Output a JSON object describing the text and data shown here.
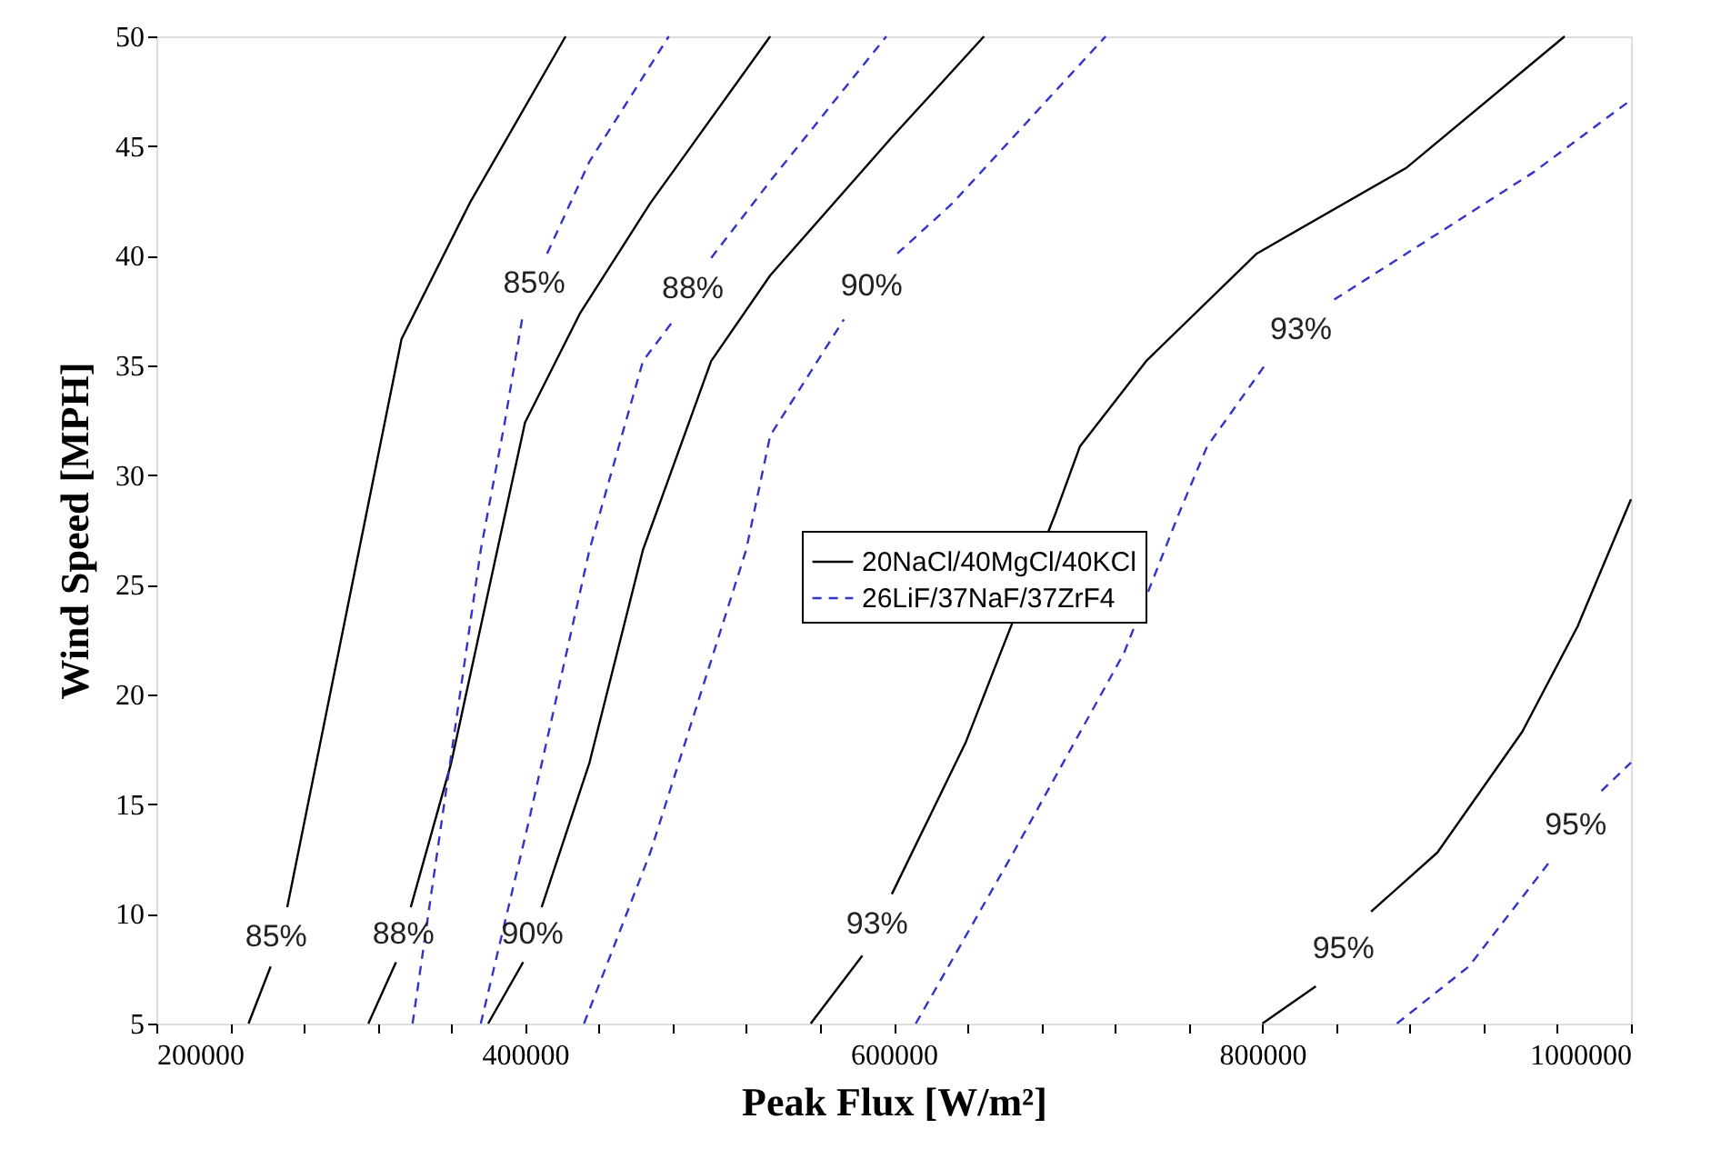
{
  "chart_data": {
    "type": "line",
    "xlabel": "Peak Flux [W/m²]",
    "ylabel": "Wind Speed  [MPH]",
    "xlim": [
      200000,
      1000000
    ],
    "ylim": [
      5,
      50
    ],
    "xticks": [
      200000,
      {
        "value": 240000,
        "label": null
      },
      {
        "value": 280000,
        "label": null
      },
      {
        "value": 320000,
        "label": null
      },
      {
        "value": 360000,
        "label": null
      },
      400000,
      {
        "value": 440000,
        "label": null
      },
      {
        "value": 480000,
        "label": null
      },
      {
        "value": 520000,
        "label": null
      },
      {
        "value": 560000,
        "label": null
      },
      600000,
      {
        "value": 640000,
        "label": null
      },
      {
        "value": 680000,
        "label": null
      },
      {
        "value": 720000,
        "label": null
      },
      {
        "value": 760000,
        "label": null
      },
      800000,
      {
        "value": 840000,
        "label": null
      },
      {
        "value": 880000,
        "label": null
      },
      {
        "value": 920000,
        "label": null
      },
      {
        "value": 960000,
        "label": null
      },
      1000000
    ],
    "yticks": [
      5,
      10,
      15,
      20,
      25,
      30,
      35,
      40,
      45,
      50
    ],
    "legend": "right",
    "series": [
      {
        "name": "20NaCl/40MgCl/40KCl",
        "color": "#000000",
        "line_style": "solid",
        "x": [
          250000,
          262000,
          265000,
          271000,
          310000,
          333000,
          370000,
          422000
        ],
        "values": [
          5,
          7.6,
          null,
          10.3,
          26.6,
          36.2,
          42.4,
          50
        ]
      },
      {
        "color": "#000000",
        "line_style": "solid",
        "x": [
          315000,
          330000,
          334000,
          338000,
          360000,
          385000,
          400000,
          430000,
          468000,
          533000
        ],
        "values": [
          5,
          7.8,
          null,
          10.3,
          16.9,
          26.6,
          32.4,
          37.4,
          42.4,
          50
        ]
      },
      {
        "color": "#000000",
        "line_style": "solid",
        "x": [
          380000,
          399000,
          404000,
          409000,
          435000,
          464000,
          501000,
          533000,
          599000,
          649000
        ],
        "values": [
          5,
          7.8,
          null,
          10.3,
          16.9,
          26.6,
          35.2,
          39.1,
          45.4,
          50
        ]
      },
      {
        "color": "#000000",
        "line_style": "solid",
        "x": [
          555000,
          583000,
          591000,
          599000,
          639000,
          658000,
          688000,
          701000,
          737000,
          797000,
          878000,
          964000
        ],
        "values": [
          5,
          8.1,
          null,
          10.9,
          17.8,
          21.9,
          28.3,
          31.3,
          35.2,
          40.1,
          44,
          50
        ]
      },
      {
        "color": "#000000",
        "line_style": "solid",
        "x": [
          800000,
          829000,
          844000,
          859000,
          895000,
          941000,
          971000,
          1000000
        ],
        "values": [
          5,
          6.7,
          null,
          10.1,
          12.8,
          18.3,
          23.1,
          28.9
        ]
      },
      {
        "name": "26LiF/37NaF/37ZrF4",
        "color": "#3333cc",
        "line_style": "dashed",
        "x": [
          339000,
          376000,
          389000,
          399000,
          405000,
          412000,
          435000,
          478000
        ],
        "values": [
          5,
          26.6,
          32.4,
          37.4,
          null,
          40.1,
          44.3,
          50
        ]
      },
      {
        "color": "#3333cc",
        "line_style": "dashed",
        "x": [
          376000,
          402000,
          435000,
          464000,
          481000,
          491000,
          501000,
          533000,
          596000
        ],
        "values": [
          5,
          14.2,
          26.6,
          35.2,
          37.1,
          null,
          39.9,
          43.4,
          50
        ]
      },
      {
        "color": "#3333cc",
        "line_style": "dashed",
        "x": [
          432000,
          468000,
          520000,
          533000,
          573000,
          588000,
          602000,
          632000,
          715000
        ],
        "values": [
          5,
          12.8,
          26.6,
          31.8,
          37.1,
          null,
          40.1,
          42.4,
          50
        ]
      },
      {
        "color": "#3333cc",
        "line_style": "dashed",
        "x": [
          612000,
          665000,
          725000,
          755000,
          770000,
          803000,
          821000,
          839000,
          895000,
          947000,
          1000000
        ],
        "values": [
          5,
          12.8,
          21.9,
          28.3,
          31.3,
          35.2,
          null,
          38,
          41,
          43.8,
          47.1
        ]
      },
      {
        "color": "#3333cc",
        "line_style": "dashed",
        "x": [
          873000,
          912000,
          957000,
          970000,
          984000,
          1000000
        ],
        "values": [
          5,
          7.6,
          12.5,
          null,
          15.6,
          16.9
        ]
      }
    ],
    "annotations": [
      "85%",
      "88%",
      "90%",
      "93%",
      "95%",
      "85%",
      "88%",
      "90%",
      "93%",
      "95%"
    ]
  }
}
